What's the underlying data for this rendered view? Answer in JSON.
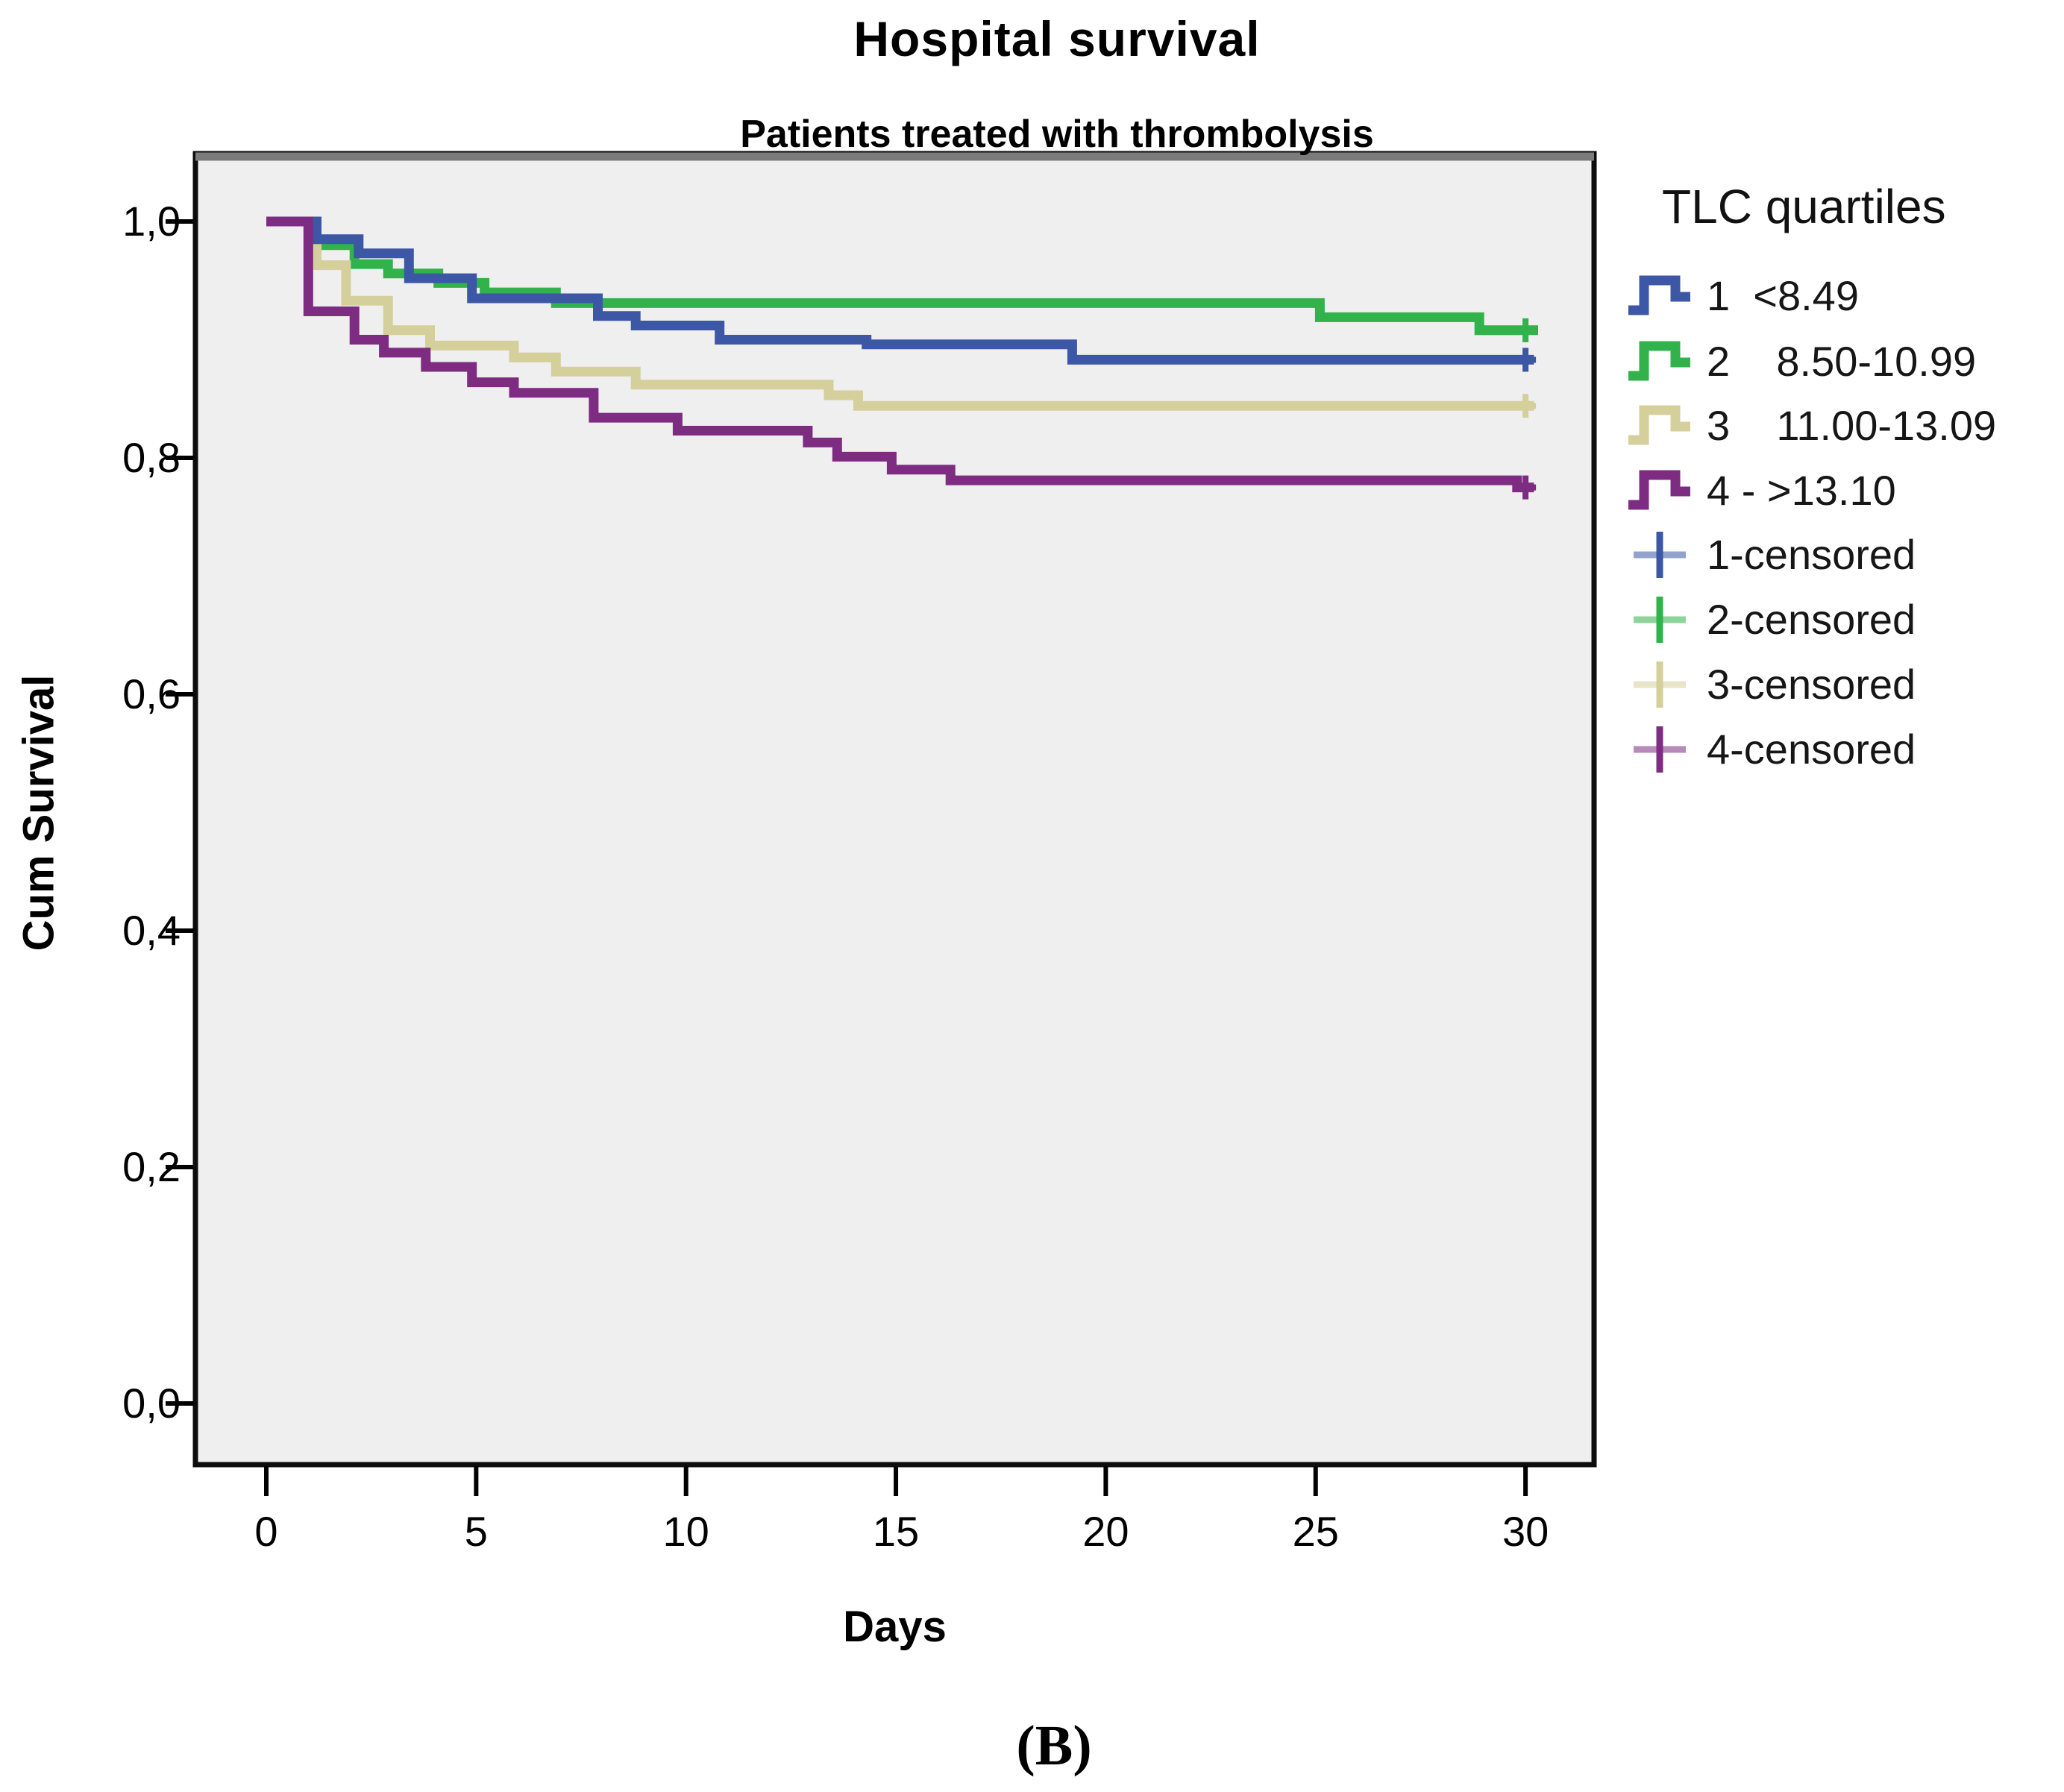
{
  "figure": {
    "title": "Hospital survival",
    "subtitle": "Patients treated with thrombolysis",
    "panel_label": "(B)"
  },
  "axes": {
    "x_label": "Days",
    "y_label": "Cum Survival",
    "x_ticks": [
      "0",
      "5",
      "10",
      "15",
      "20",
      "25",
      "30"
    ],
    "x_tick_values": [
      0,
      5,
      10,
      15,
      20,
      25,
      30
    ],
    "y_ticks": [
      "1,0",
      "0,8",
      "0,6",
      "0,4",
      "0,2",
      "0,0"
    ],
    "y_tick_values": [
      1.0,
      0.8,
      0.6,
      0.4,
      0.2,
      0.0
    ]
  },
  "legend": {
    "title": "TLC quartiles",
    "items": [
      {
        "label": "1  <8.49",
        "color": "#3C57A5"
      },
      {
        "label": "2    8.50-10.99",
        "color": "#31B24B"
      },
      {
        "label": "3    11.00-13.09",
        "color": "#D5CF9C"
      },
      {
        "label": "4 - >13.10",
        "color": "#7E2C82"
      }
    ],
    "censored_items": [
      {
        "label": "1-censored",
        "color": "#3C57A5"
      },
      {
        "label": "2-censored",
        "color": "#31B24B"
      },
      {
        "label": "3-censored",
        "color": "#D5CF9C"
      },
      {
        "label": "4-censored",
        "color": "#7E2C82"
      }
    ]
  },
  "chart_data": {
    "type": "line",
    "subtype": "kaplan-meier-step",
    "title": "Hospital survival",
    "subtitle": "Patients treated with thrombolysis",
    "xlabel": "Days",
    "ylabel": "Cum Survival",
    "xlim": [
      0,
      30
    ],
    "ylim": [
      0.0,
      1.0
    ],
    "grid": false,
    "legend_position": "right",
    "series": [
      {
        "name": "1  <8.49",
        "color": "#3C57A5",
        "steps": [
          [
            0,
            1.0
          ],
          [
            1.2,
            0.985
          ],
          [
            2.2,
            0.973
          ],
          [
            3.4,
            0.952
          ],
          [
            4.9,
            0.935
          ],
          [
            7.9,
            0.92
          ],
          [
            8.8,
            0.912
          ],
          [
            10.8,
            0.9
          ],
          [
            14.3,
            0.896
          ],
          [
            19.2,
            0.883
          ],
          [
            30.2,
            0.883
          ]
        ],
        "censored": [
          [
            30,
            0.883
          ]
        ]
      },
      {
        "name": "2  8.50-10.99",
        "color": "#31B24B",
        "steps": [
          [
            0,
            1.0
          ],
          [
            1.2,
            0.98
          ],
          [
            2.1,
            0.964
          ],
          [
            2.9,
            0.956
          ],
          [
            4.1,
            0.948
          ],
          [
            5.2,
            0.94
          ],
          [
            6.9,
            0.931
          ],
          [
            25.1,
            0.919
          ],
          [
            28.9,
            0.908
          ],
          [
            30.3,
            0.908
          ]
        ],
        "censored": [
          [
            30,
            0.908
          ]
        ]
      },
      {
        "name": "3  11.00-13.09",
        "color": "#D5CF9C",
        "steps": [
          [
            0,
            1.0
          ],
          [
            1.2,
            0.963
          ],
          [
            1.9,
            0.933
          ],
          [
            2.9,
            0.908
          ],
          [
            3.9,
            0.895
          ],
          [
            5.9,
            0.885
          ],
          [
            6.9,
            0.873
          ],
          [
            8.8,
            0.862
          ],
          [
            13.4,
            0.853
          ],
          [
            14.1,
            0.844
          ],
          [
            30.2,
            0.844
          ]
        ],
        "censored": [
          [
            30,
            0.844
          ]
        ]
      },
      {
        "name": "4 - >13.10",
        "color": "#7E2C82",
        "steps": [
          [
            0,
            1.0
          ],
          [
            1.0,
            0.924
          ],
          [
            2.1,
            0.9
          ],
          [
            2.8,
            0.889
          ],
          [
            3.8,
            0.877
          ],
          [
            4.9,
            0.864
          ],
          [
            5.9,
            0.855
          ],
          [
            7.8,
            0.834
          ],
          [
            9.8,
            0.823
          ],
          [
            12.9,
            0.813
          ],
          [
            13.6,
            0.801
          ],
          [
            14.9,
            0.79
          ],
          [
            16.3,
            0.781
          ],
          [
            29.8,
            0.775
          ],
          [
            30.2,
            0.775
          ]
        ],
        "censored": [
          [
            30,
            0.775
          ]
        ]
      }
    ],
    "draw_order": [
      1,
      2,
      0,
      3
    ]
  },
  "colors": {
    "plot_background": "#EFEFEF",
    "plot_border": "#0D0D0D",
    "plot_border_top": "#7B7B7B",
    "series_blue": "#3C57A5",
    "series_green": "#31B24B",
    "series_tan": "#D5CF9C",
    "series_purple": "#7E2C82"
  }
}
